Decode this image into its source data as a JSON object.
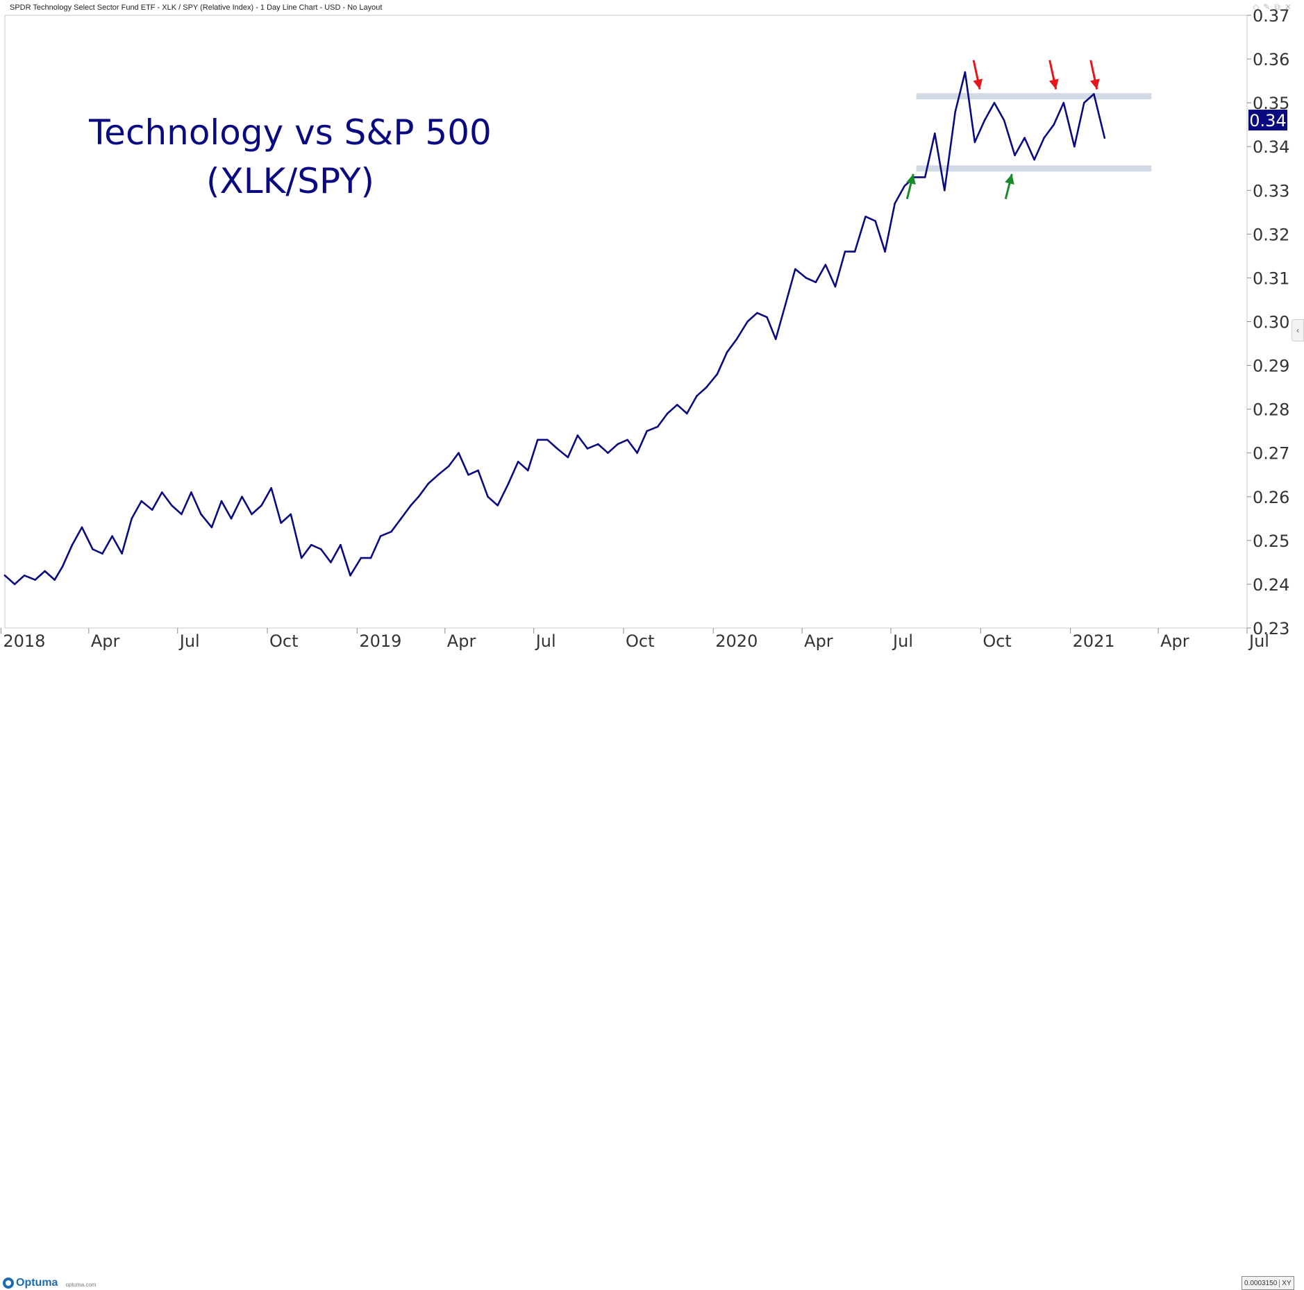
{
  "window": {
    "title": "SPDR Technology Select Sector Fund ETF - XLK / SPY (Relative Index) - 1 Day Line Chart - USD - No Layout",
    "controls": [
      "◇",
      "✎",
      "⧉",
      "✕"
    ]
  },
  "colors": {
    "line": "#0a0a80",
    "band": "#cdd3e0",
    "arrow_resistance": "#e8141b",
    "arrow_support": "#1a8a2a",
    "price_tag_bg": "#0a0a80"
  },
  "annotation": {
    "line1": "Technology vs S&P 500",
    "line2": "(XLK/SPY)"
  },
  "price_tag": "0.34",
  "footer": {
    "logo_text": "Optuma",
    "logo_site": "optuma.com",
    "scale_value": "0.0003150",
    "scale_mode": "XY"
  },
  "chart_data": {
    "type": "line",
    "title": "",
    "xlabel": "",
    "ylabel": "",
    "ylim": [
      0.23,
      0.37
    ],
    "xlim": [
      "2018-01-05",
      "2021-07-01"
    ],
    "grid": false,
    "y_ticks": [
      "0.23",
      "0.24",
      "0.25",
      "0.26",
      "0.27",
      "0.28",
      "0.29",
      "0.30",
      "0.31",
      "0.32",
      "0.33",
      "0.34",
      "0.35",
      "0.36",
      "0.37"
    ],
    "x_ticks": [
      {
        "label": "2018",
        "date": "2018-01-01"
      },
      {
        "label": "Apr",
        "date": "2018-04-01"
      },
      {
        "label": "Jul",
        "date": "2018-07-01"
      },
      {
        "label": "Oct",
        "date": "2018-10-01"
      },
      {
        "label": "2019",
        "date": "2019-01-01"
      },
      {
        "label": "Apr",
        "date": "2019-04-01"
      },
      {
        "label": "Jul",
        "date": "2019-07-01"
      },
      {
        "label": "Oct",
        "date": "2019-10-01"
      },
      {
        "label": "2020",
        "date": "2020-01-01"
      },
      {
        "label": "Apr",
        "date": "2020-04-01"
      },
      {
        "label": "Jul",
        "date": "2020-07-01"
      },
      {
        "label": "Oct",
        "date": "2020-10-01"
      },
      {
        "label": "2021",
        "date": "2021-01-01"
      },
      {
        "label": "Apr",
        "date": "2021-04-01"
      },
      {
        "label": "Jul",
        "date": "2021-07-01"
      }
    ],
    "series": [
      {
        "x": [
          "2018-01-05",
          "2018-01-15",
          "2018-01-25",
          "2018-02-05",
          "2018-02-15",
          "2018-02-25",
          "2018-03-05",
          "2018-03-15",
          "2018-03-25",
          "2018-04-05",
          "2018-04-15",
          "2018-04-25",
          "2018-05-05",
          "2018-05-15",
          "2018-05-25",
          "2018-06-05",
          "2018-06-15",
          "2018-06-25",
          "2018-07-05",
          "2018-07-15",
          "2018-07-25",
          "2018-08-05",
          "2018-08-15",
          "2018-08-25",
          "2018-09-05",
          "2018-09-15",
          "2018-09-25",
          "2018-10-05",
          "2018-10-15",
          "2018-10-25",
          "2018-11-05",
          "2018-11-15",
          "2018-11-25",
          "2018-12-05",
          "2018-12-15",
          "2018-12-25",
          "2019-01-05",
          "2019-01-15",
          "2019-01-25",
          "2019-02-05",
          "2019-02-15",
          "2019-02-25",
          "2019-03-05",
          "2019-03-15",
          "2019-03-25",
          "2019-04-05",
          "2019-04-15",
          "2019-04-25",
          "2019-05-05",
          "2019-05-15",
          "2019-05-25",
          "2019-06-05",
          "2019-06-15",
          "2019-06-25",
          "2019-07-05",
          "2019-07-15",
          "2019-07-25",
          "2019-08-05",
          "2019-08-15",
          "2019-08-25",
          "2019-09-05",
          "2019-09-15",
          "2019-09-25",
          "2019-10-05",
          "2019-10-15",
          "2019-10-25",
          "2019-11-05",
          "2019-11-15",
          "2019-11-25",
          "2019-12-05",
          "2019-12-15",
          "2019-12-25",
          "2020-01-05",
          "2020-01-15",
          "2020-01-25",
          "2020-02-05",
          "2020-02-15",
          "2020-02-25",
          "2020-03-05",
          "2020-03-15",
          "2020-03-25",
          "2020-04-05",
          "2020-04-15",
          "2020-04-25",
          "2020-05-05",
          "2020-05-15",
          "2020-05-25",
          "2020-06-05",
          "2020-06-15",
          "2020-06-25",
          "2020-07-05",
          "2020-07-15",
          "2020-07-25",
          "2020-08-05",
          "2020-08-15",
          "2020-08-25",
          "2020-09-05",
          "2020-09-15",
          "2020-09-25",
          "2020-10-05",
          "2020-10-15",
          "2020-10-25",
          "2020-11-05",
          "2020-11-15",
          "2020-11-25",
          "2020-12-05",
          "2020-12-15",
          "2020-12-25",
          "2021-01-05",
          "2021-01-15",
          "2021-01-25",
          "2021-02-05"
        ],
        "values": [
          0.242,
          0.24,
          0.242,
          0.241,
          0.243,
          0.241,
          0.244,
          0.249,
          0.253,
          0.248,
          0.247,
          0.251,
          0.247,
          0.255,
          0.259,
          0.257,
          0.261,
          0.258,
          0.256,
          0.261,
          0.256,
          0.253,
          0.259,
          0.255,
          0.26,
          0.256,
          0.258,
          0.262,
          0.254,
          0.256,
          0.246,
          0.249,
          0.248,
          0.245,
          0.249,
          0.242,
          0.246,
          0.246,
          0.251,
          0.252,
          0.255,
          0.258,
          0.26,
          0.263,
          0.265,
          0.267,
          0.27,
          0.265,
          0.266,
          0.26,
          0.258,
          0.263,
          0.268,
          0.266,
          0.273,
          0.273,
          0.271,
          0.269,
          0.274,
          0.271,
          0.272,
          0.27,
          0.272,
          0.273,
          0.27,
          0.275,
          0.276,
          0.279,
          0.281,
          0.279,
          0.283,
          0.285,
          0.288,
          0.293,
          0.296,
          0.3,
          0.302,
          0.301,
          0.296,
          0.304,
          0.312,
          0.31,
          0.309,
          0.313,
          0.308,
          0.316,
          0.316,
          0.324,
          0.323,
          0.316,
          0.327,
          0.331,
          0.333,
          0.333,
          0.343,
          0.33,
          0.348,
          0.357,
          0.341,
          0.346,
          0.35,
          0.346,
          0.338,
          0.342,
          0.337,
          0.342,
          0.345,
          0.35,
          0.34,
          0.35,
          0.352,
          0.342
        ]
      }
    ],
    "bands": [
      {
        "label": "resistance",
        "y": 0.3515,
        "x_start": "2020-07-27",
        "x_end": "2021-03-25"
      },
      {
        "label": "support",
        "y": 0.335,
        "x_start": "2020-07-27",
        "x_end": "2021-03-25"
      }
    ],
    "arrows": [
      {
        "kind": "resistance",
        "x": "2020-09-28",
        "y": 0.3515,
        "direction": "down"
      },
      {
        "kind": "resistance",
        "x": "2020-12-15",
        "y": 0.3515,
        "direction": "down"
      },
      {
        "kind": "resistance",
        "x": "2021-01-26",
        "y": 0.3515,
        "direction": "down"
      },
      {
        "kind": "support",
        "x": "2020-07-24",
        "y": 0.335,
        "direction": "up"
      },
      {
        "kind": "support",
        "x": "2020-11-02",
        "y": 0.335,
        "direction": "up"
      }
    ]
  }
}
